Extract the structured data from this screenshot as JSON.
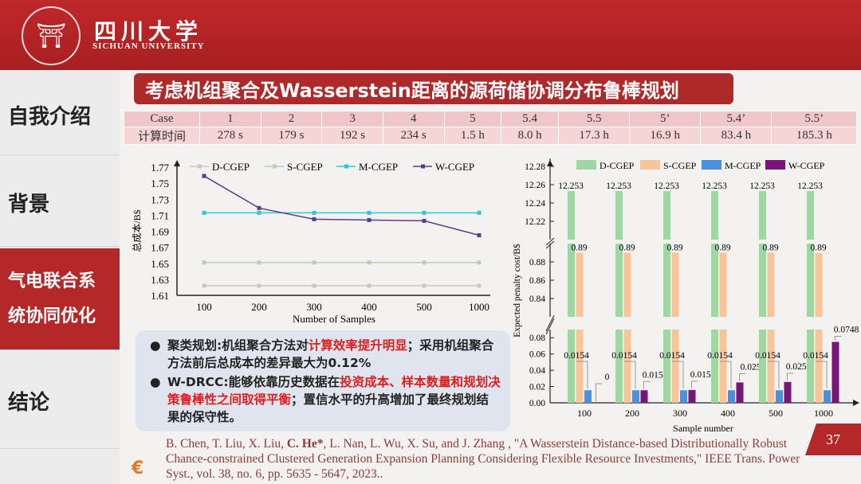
{
  "header": {
    "university_cn": "四川大学",
    "university_en": "SICHUAN UNIVERSITY",
    "logo_text": "四川大学 SICHUAN UNIVERSITY 1896"
  },
  "sidebar": {
    "items": [
      {
        "label": "自我介绍"
      },
      {
        "label": "背景"
      },
      {
        "label_lines": [
          "气电联合系",
          "统协同优化"
        ],
        "active": true
      },
      {
        "label": "结论"
      }
    ]
  },
  "title": "考虑机组聚合及Wasserstein距离的源荷储协调分布鲁棒规划",
  "table": {
    "header": [
      "Case",
      "1",
      "2",
      "3",
      "4",
      "5",
      "5.4",
      "5.5",
      "5’",
      "5.4’",
      "5.5’"
    ],
    "row": [
      "计算时间",
      "278 s",
      "179 s",
      "192 s",
      "234 s",
      "1.5 h",
      "8.0 h",
      "17.3 h",
      "16.9 h",
      "83.4 h",
      "185.3 h"
    ]
  },
  "chart_data": [
    {
      "type": "line",
      "xlabel": "Number of Samples",
      "ylabel": "总成本/B$",
      "categories": [
        "100",
        "200",
        "300",
        "400",
        "500",
        "1000"
      ],
      "ylim": [
        1.61,
        1.77
      ],
      "yticks": [
        "1.61",
        "1.63",
        "1.65",
        "1.67",
        "1.69",
        "1.71",
        "1.73",
        "1.75",
        "1.77"
      ],
      "legend": "top",
      "series": [
        {
          "name": "D-CGEP",
          "color": "#c8c8c8",
          "values": [
            1.622,
            1.622,
            1.622,
            1.622,
            1.622,
            1.622
          ]
        },
        {
          "name": "S-CGEP",
          "color": "#b8d0b0",
          "values": [
            1.651,
            1.651,
            1.651,
            1.651,
            1.651,
            1.651
          ]
        },
        {
          "name": "M-CGEP",
          "color": "#2fc6d6",
          "values": [
            1.713,
            1.713,
            1.713,
            1.713,
            1.713,
            1.713
          ]
        },
        {
          "name": "W-CGEP",
          "color": "#5b3d86",
          "values": [
            1.759,
            1.719,
            1.705,
            1.704,
            1.703,
            1.685
          ]
        }
      ]
    },
    {
      "type": "bar",
      "xlabel": "Sample number",
      "ylabel": "Expected penalty cost/B$",
      "categories": [
        "100",
        "200",
        "300",
        "400",
        "500",
        "1000"
      ],
      "axis_breaks": [
        [
          0,
          0.09
        ],
        [
          0.82,
          0.9
        ],
        [
          12.2,
          12.28
        ]
      ],
      "yticks": [
        "0.00",
        "0.02",
        "0.04",
        "0.06",
        "0.08",
        "0.84",
        "0.86",
        "0.88",
        "12.22",
        "12.24",
        "12.26",
        "12.28"
      ],
      "legend": "top",
      "series": [
        {
          "name": "D-CGEP",
          "color": "#9fd6a4",
          "values": [
            12.253,
            12.253,
            12.253,
            12.253,
            12.253,
            12.253
          ],
          "labels": [
            "12.253",
            "12.253",
            "12.253",
            "12.253",
            "12.253",
            "12.253"
          ]
        },
        {
          "name": "S-CGEP",
          "color": "#f8c49a",
          "values": [
            0.89,
            0.89,
            0.89,
            0.89,
            0.89,
            0.89
          ],
          "labels": [
            "0.89",
            "0.89",
            "0.89",
            "0.89",
            "0.89",
            "0.89"
          ]
        },
        {
          "name": "M-CGEP",
          "color": "#4a90e2",
          "values": [
            0.0154,
            0.0154,
            0.0154,
            0.0154,
            0.0154,
            0.0154
          ],
          "labels": [
            "0.0154",
            "0.0154",
            "0.0154",
            "0.0154",
            "0.0154",
            "0.0154"
          ]
        },
        {
          "name": "W-CGEP",
          "color": "#7a1478",
          "values": [
            0,
            0.0154,
            0.0158,
            0.025,
            0.0256,
            0.0748
          ],
          "labels": [
            "0",
            "0.0154",
            "0.0158",
            "0.025",
            "0.0256",
            "0.0748"
          ]
        }
      ]
    }
  ],
  "bullets": [
    {
      "parts": [
        {
          "t": "聚类规划:机组聚合方法对",
          "red": false
        },
        {
          "t": "计算效率提升明显",
          "red": true
        },
        {
          "t": "；采用机组聚合方法前后总成本的差异最大为0.12%",
          "red": false
        }
      ]
    },
    {
      "parts": [
        {
          "t": "W-DRCC:能够依靠历史数据在",
          "red": false
        },
        {
          "t": "投资成本、样本数量和规划决策鲁棒性之间取得平衡",
          "red": true
        },
        {
          "t": "；置信水平的升高增加了最终规划结果的保守性。",
          "red": false
        }
      ]
    }
  ],
  "citation": {
    "pre": "B. Chen, T. Liu, X. Liu, ",
    "bold": "C. He*",
    "post": ", L. Nan, L. Wu, X. Su, and J. Zhang , \"A Wasserstein Distance-based Distributionally Robust Chance-constrained Clustered Generation Expansion Planning Considering Flexible Resource Investments,\" IEEE Trans. Power Syst., vol. 38, no. 6, pp. 5635 - 5647, 2023.."
  },
  "page_number": "37"
}
